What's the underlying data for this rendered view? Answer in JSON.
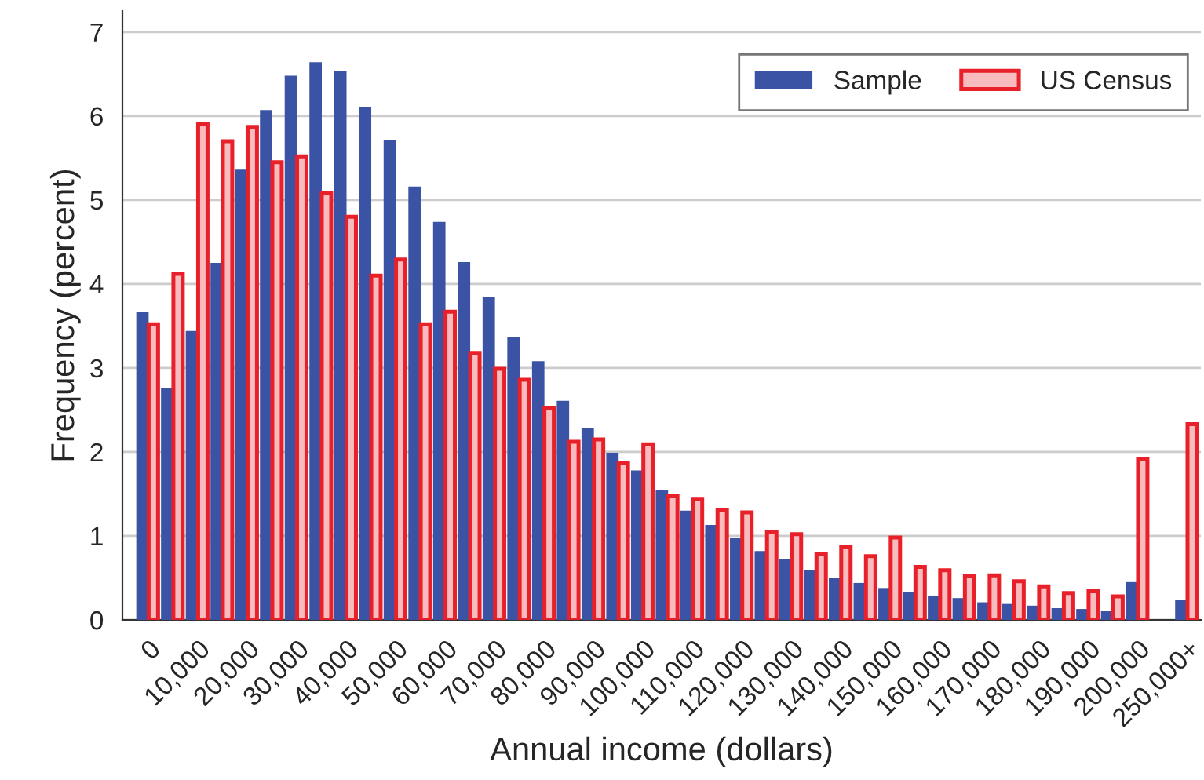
{
  "chart_data": {
    "type": "bar",
    "xlabel": "Annual income (dollars)",
    "ylabel": "Frequency (percent)",
    "categories": [
      "0",
      null,
      "10,000",
      null,
      "20,000",
      null,
      "30,000",
      null,
      "40,000",
      null,
      "50,000",
      null,
      "60,000",
      null,
      "70,000",
      null,
      "80,000",
      null,
      "90,000",
      null,
      "100,000",
      null,
      "110,000",
      null,
      "120,000",
      null,
      "130,000",
      null,
      "140,000",
      null,
      "150,000",
      null,
      "160,000",
      null,
      "170,000",
      null,
      "180,000",
      null,
      "190,000",
      null,
      "200,000",
      null,
      "250,000+"
    ],
    "series": [
      {
        "name": "Sample",
        "color": "#3a53a4",
        "values": [
          3.67,
          2.76,
          3.44,
          4.25,
          5.36,
          6.07,
          6.48,
          6.64,
          6.53,
          6.11,
          5.71,
          5.16,
          4.74,
          4.26,
          3.84,
          3.37,
          3.08,
          2.61,
          2.28,
          1.99,
          1.78,
          1.55,
          1.3,
          1.13,
          0.98,
          0.82,
          0.72,
          0.59,
          0.5,
          0.44,
          0.38,
          0.33,
          0.29,
          0.26,
          0.21,
          0.19,
          0.17,
          0.14,
          0.13,
          0.11,
          0.45,
          null,
          0.24
        ]
      },
      {
        "name": "US Census",
        "color": "#e8202a",
        "values": [
          3.52,
          4.12,
          5.9,
          5.7,
          5.87,
          5.45,
          5.52,
          5.08,
          4.8,
          4.1,
          4.29,
          3.52,
          3.67,
          3.18,
          2.99,
          2.86,
          2.52,
          2.12,
          2.15,
          1.87,
          2.09,
          1.48,
          1.44,
          1.31,
          1.28,
          1.05,
          1.02,
          0.78,
          0.87,
          0.76,
          0.98,
          0.63,
          0.59,
          0.52,
          0.53,
          0.46,
          0.4,
          0.32,
          0.34,
          0.28,
          1.91,
          null,
          2.33
        ]
      }
    ],
    "ylim": [
      0,
      7.25
    ],
    "yticks": [
      0,
      1,
      2,
      3,
      4,
      5,
      6,
      7
    ],
    "grid": "y",
    "legend": "top right"
  }
}
